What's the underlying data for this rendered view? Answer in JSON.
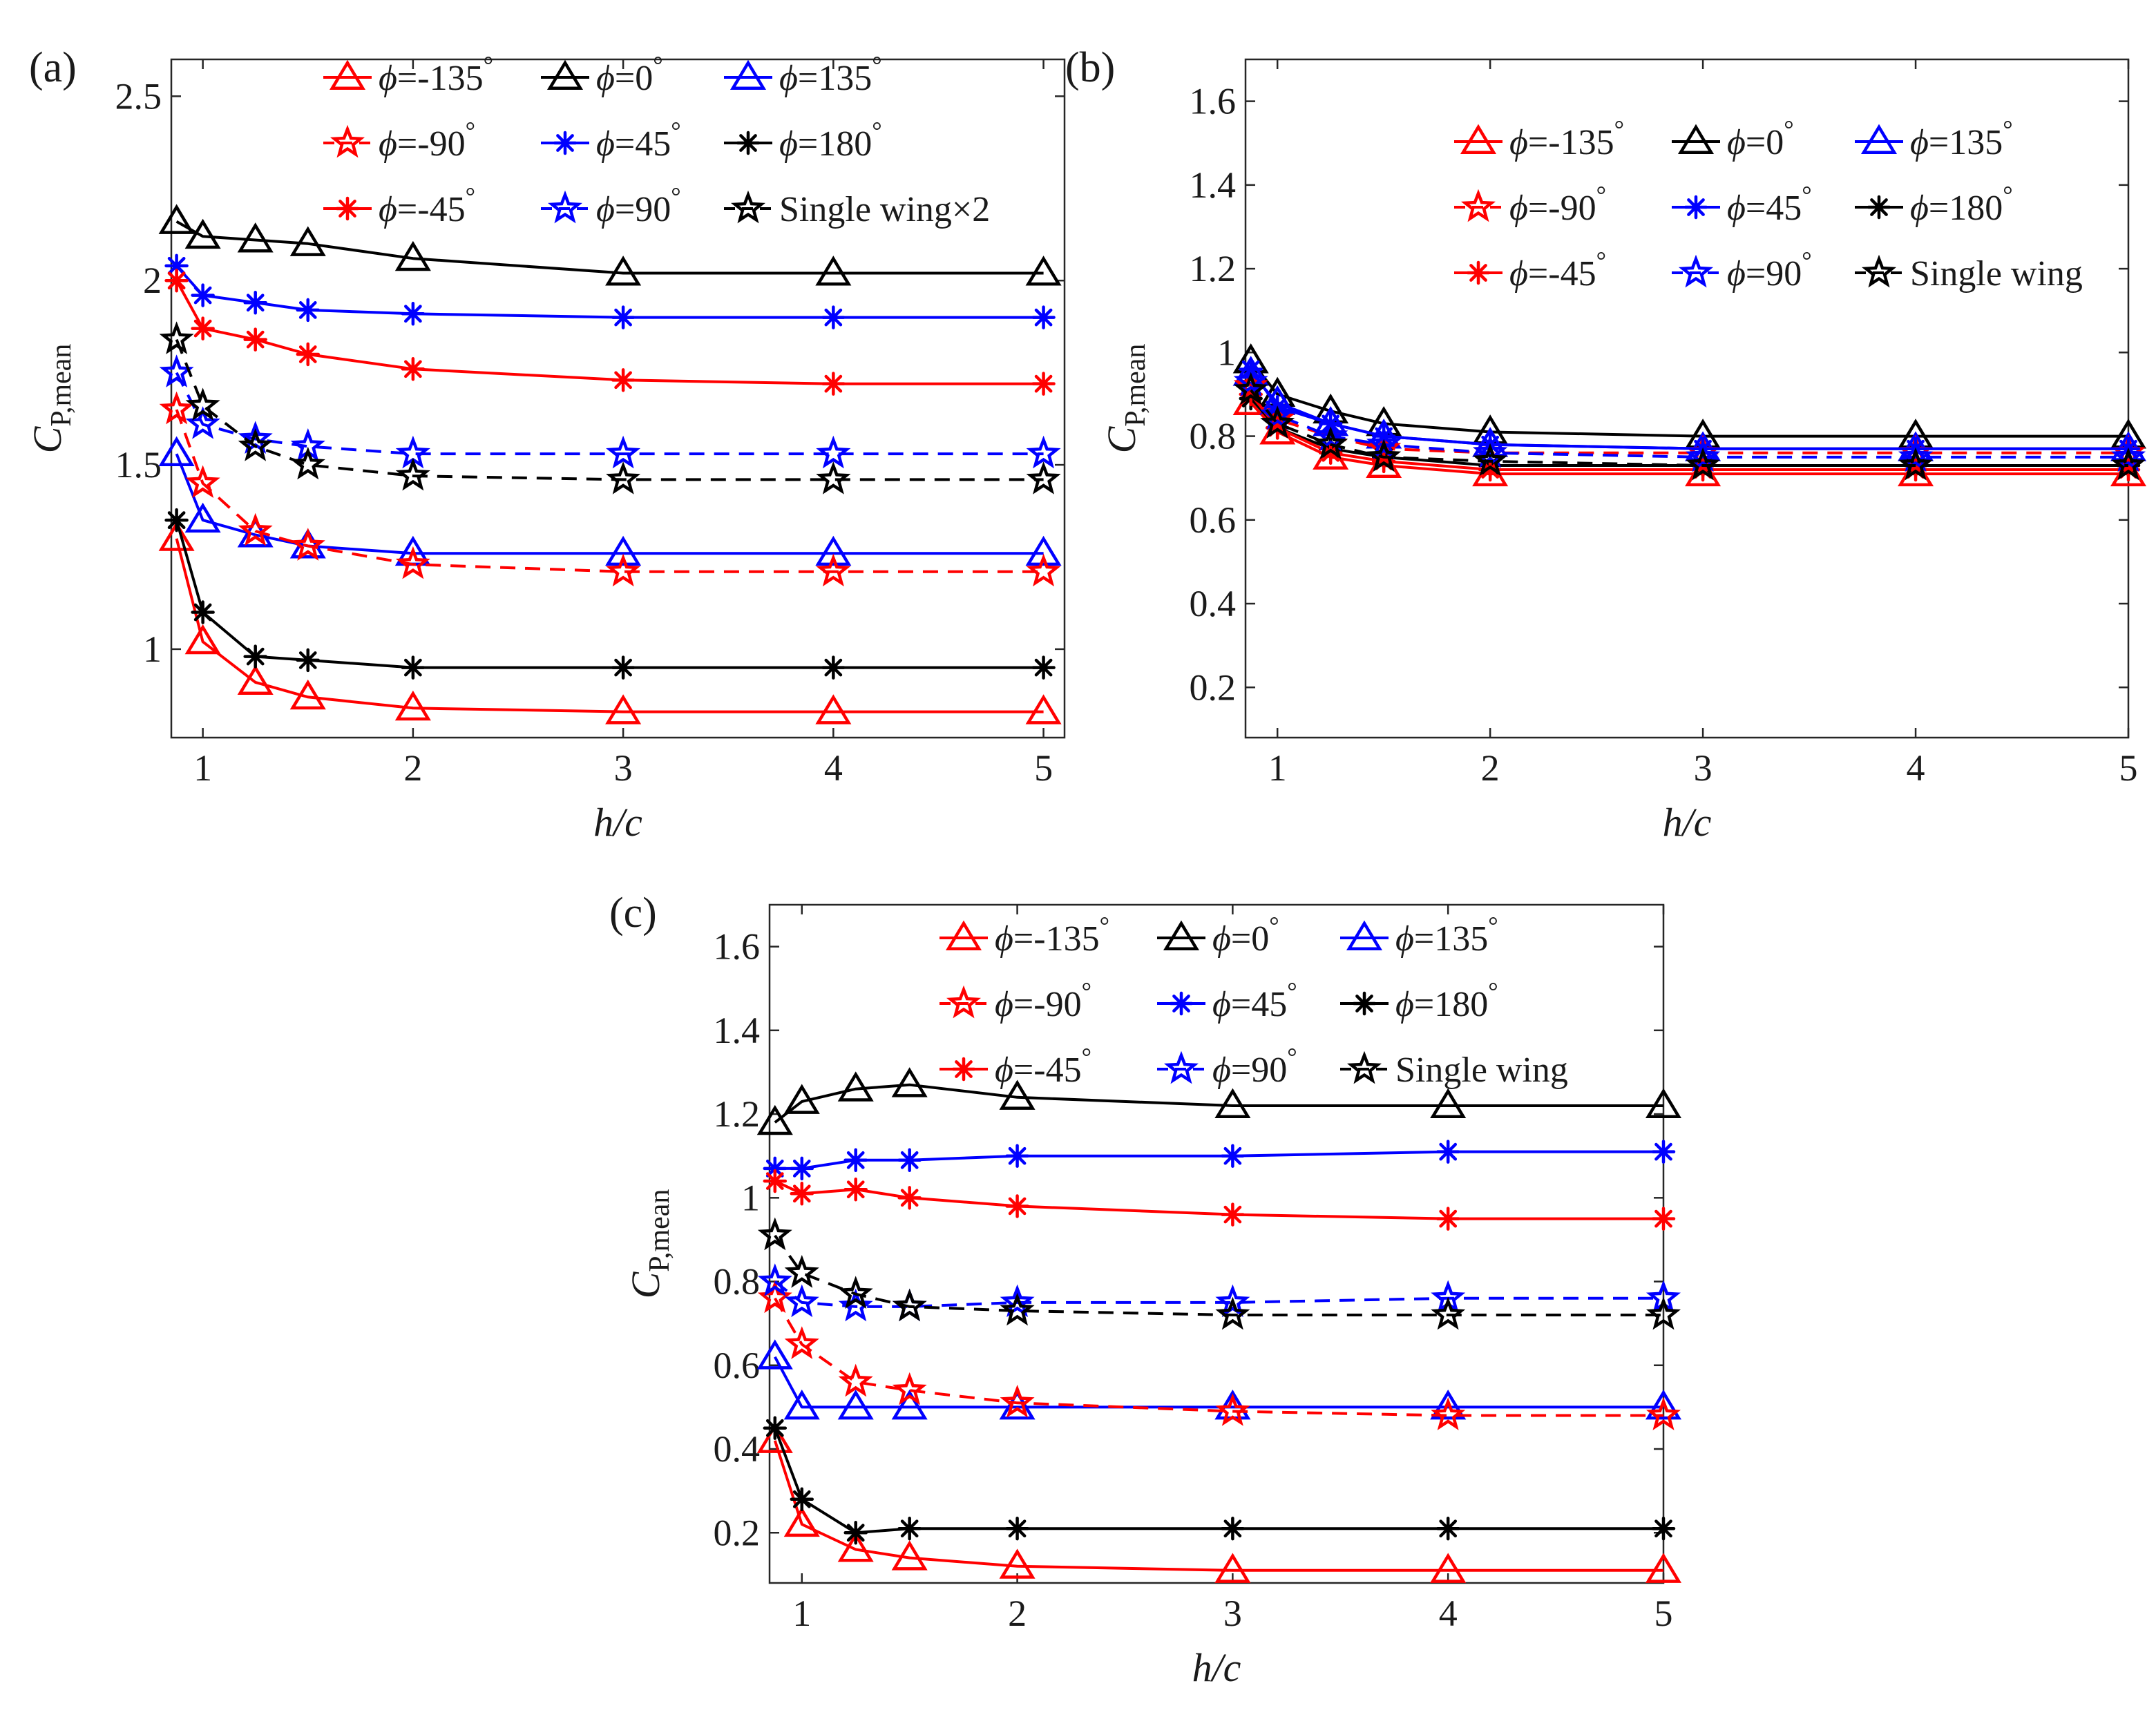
{
  "chart_data": [
    {
      "type": "line",
      "panel_label": "(a)",
      "xlabel": "h/c",
      "ylabel_main": "C",
      "ylabel_sub": "P,mean",
      "xlim": [
        0.85,
        5.1
      ],
      "ylim": [
        0.76,
        2.6
      ],
      "xticks": [
        1,
        2,
        3,
        4,
        5
      ],
      "xtick_labels": [
        "1",
        "2",
        "3",
        "4",
        "5"
      ],
      "yticks": [
        1,
        1.5,
        2,
        2.5
      ],
      "ytick_labels": [
        "1",
        "1.5",
        "2",
        "2.5"
      ],
      "x": [
        0.875,
        1,
        1.25,
        1.5,
        2,
        3,
        4,
        5
      ],
      "legend_location": "top",
      "series": [
        {
          "name": "ϕ=-135°",
          "symbol": "ϕ",
          "rest": "=-135",
          "sup": "°",
          "color": "#ff0000",
          "marker": "triangle",
          "dash": "solid",
          "values": [
            1.3,
            1.02,
            0.91,
            0.87,
            0.84,
            0.83,
            0.83,
            0.83
          ]
        },
        {
          "name": "ϕ=0°",
          "symbol": "ϕ",
          "rest": "=0",
          "sup": "°",
          "color": "#000000",
          "marker": "triangle",
          "dash": "solid",
          "values": [
            2.16,
            2.12,
            2.11,
            2.1,
            2.06,
            2.02,
            2.02,
            2.02
          ]
        },
        {
          "name": "ϕ=135°",
          "symbol": "ϕ",
          "rest": "=135",
          "sup": "°",
          "color": "#0000ff",
          "marker": "triangle",
          "dash": "solid",
          "values": [
            1.53,
            1.35,
            1.31,
            1.28,
            1.26,
            1.26,
            1.26,
            1.26
          ]
        },
        {
          "name": "ϕ=-90°",
          "symbol": "ϕ",
          "rest": "=-90",
          "sup": "°",
          "color": "#ff0000",
          "marker": "pentagram",
          "dash": "dashed",
          "values": [
            1.65,
            1.45,
            1.32,
            1.28,
            1.23,
            1.21,
            1.21,
            1.21
          ]
        },
        {
          "name": "ϕ=45°",
          "symbol": "ϕ",
          "rest": "=45",
          "sup": "°",
          "color": "#0000ff",
          "marker": "asterisk",
          "dash": "solid",
          "values": [
            2.04,
            1.96,
            1.94,
            1.92,
            1.91,
            1.9,
            1.9,
            1.9
          ]
        },
        {
          "name": "ϕ=180°",
          "symbol": "ϕ",
          "rest": "=180",
          "sup": "°",
          "color": "#000000",
          "marker": "asterisk",
          "dash": "solid",
          "values": [
            1.35,
            1.1,
            0.98,
            0.97,
            0.95,
            0.95,
            0.95,
            0.95
          ]
        },
        {
          "name": "ϕ=-45°",
          "symbol": "ϕ",
          "rest": "=-45",
          "sup": "°",
          "color": "#ff0000",
          "marker": "asterisk",
          "dash": "solid",
          "values": [
            2.0,
            1.87,
            1.84,
            1.8,
            1.76,
            1.73,
            1.72,
            1.72
          ]
        },
        {
          "name": "ϕ=90°",
          "symbol": "ϕ",
          "rest": "=90",
          "sup": "°",
          "color": "#0000ff",
          "marker": "pentagram",
          "dash": "dashed",
          "values": [
            1.75,
            1.61,
            1.57,
            1.55,
            1.53,
            1.53,
            1.53,
            1.53
          ]
        },
        {
          "name": "Single wing×2",
          "symbol": "",
          "rest": "Single wing×2",
          "sup": "",
          "color": "#000000",
          "marker": "pentagram",
          "dash": "dashed",
          "values": [
            1.84,
            1.66,
            1.55,
            1.5,
            1.47,
            1.46,
            1.46,
            1.46
          ]
        }
      ]
    },
    {
      "type": "line",
      "panel_label": "(b)",
      "xlabel": "h/c",
      "ylabel_main": "C",
      "ylabel_sub": "P,mean",
      "xlim": [
        0.85,
        5.0
      ],
      "ylim": [
        0.08,
        1.7
      ],
      "xticks": [
        1,
        2,
        3,
        4,
        5
      ],
      "xtick_labels": [
        "1",
        "2",
        "3",
        "4",
        "5"
      ],
      "yticks": [
        0.2,
        0.4,
        0.6,
        0.8,
        1,
        1.2,
        1.4,
        1.6
      ],
      "ytick_labels": [
        "0.2",
        "0.4",
        "0.6",
        "0.8",
        "1",
        "1.2",
        "1.4",
        "1.6"
      ],
      "x": [
        0.875,
        1,
        1.25,
        1.5,
        2,
        3,
        4,
        5
      ],
      "legend_location": "top-right",
      "series": [
        {
          "name": "ϕ=-135°",
          "symbol": "ϕ",
          "rest": "=-135",
          "sup": "°",
          "color": "#ff0000",
          "marker": "triangle",
          "dash": "solid",
          "values": [
            0.88,
            0.81,
            0.75,
            0.73,
            0.71,
            0.71,
            0.71,
            0.71
          ]
        },
        {
          "name": "ϕ=0°",
          "symbol": "ϕ",
          "rest": "=0",
          "sup": "°",
          "color": "#000000",
          "marker": "triangle",
          "dash": "solid",
          "values": [
            0.98,
            0.9,
            0.86,
            0.83,
            0.81,
            0.8,
            0.8,
            0.8
          ]
        },
        {
          "name": "ϕ=135°",
          "symbol": "ϕ",
          "rest": "=135",
          "sup": "°",
          "color": "#0000ff",
          "marker": "triangle",
          "dash": "solid",
          "values": [
            0.95,
            0.88,
            0.83,
            0.8,
            0.78,
            0.77,
            0.77,
            0.77
          ]
        },
        {
          "name": "ϕ=-90°",
          "symbol": "ϕ",
          "rest": "=-90",
          "sup": "°",
          "color": "#ff0000",
          "marker": "pentagram",
          "dash": "dashed",
          "values": [
            0.92,
            0.84,
            0.8,
            0.77,
            0.76,
            0.76,
            0.76,
            0.76
          ]
        },
        {
          "name": "ϕ=45°",
          "symbol": "ϕ",
          "rest": "=45",
          "sup": "°",
          "color": "#0000ff",
          "marker": "asterisk",
          "dash": "solid",
          "values": [
            0.96,
            0.87,
            0.83,
            0.8,
            0.78,
            0.77,
            0.77,
            0.77
          ]
        },
        {
          "name": "ϕ=180°",
          "symbol": "ϕ",
          "rest": "=180",
          "sup": "°",
          "color": "#000000",
          "marker": "asterisk",
          "dash": "solid",
          "values": [
            0.89,
            0.82,
            0.77,
            0.75,
            0.73,
            0.73,
            0.73,
            0.73
          ]
        },
        {
          "name": "ϕ=-45°",
          "symbol": "ϕ",
          "rest": "=-45",
          "sup": "°",
          "color": "#ff0000",
          "marker": "asterisk",
          "dash": "solid",
          "values": [
            0.9,
            0.82,
            0.76,
            0.74,
            0.72,
            0.72,
            0.72,
            0.72
          ]
        },
        {
          "name": "ϕ=90°",
          "symbol": "ϕ",
          "rest": "=90",
          "sup": "°",
          "color": "#0000ff",
          "marker": "pentagram",
          "dash": "dashed",
          "values": [
            0.93,
            0.85,
            0.8,
            0.78,
            0.76,
            0.75,
            0.75,
            0.75
          ]
        },
        {
          "name": "Single wing",
          "symbol": "",
          "rest": "Single wing",
          "sup": "",
          "color": "#000000",
          "marker": "pentagram",
          "dash": "dashed",
          "values": [
            0.91,
            0.83,
            0.78,
            0.75,
            0.74,
            0.73,
            0.73,
            0.73
          ]
        }
      ]
    },
    {
      "type": "line",
      "panel_label": "(c)",
      "xlabel": "h/c",
      "ylabel_main": "C",
      "ylabel_sub": "P,mean",
      "xlim": [
        0.85,
        5.0
      ],
      "ylim": [
        0.08,
        1.7
      ],
      "xticks": [
        1,
        2,
        3,
        4,
        5
      ],
      "xtick_labels": [
        "1",
        "2",
        "3",
        "4",
        "5"
      ],
      "yticks": [
        0.2,
        0.4,
        0.6,
        0.8,
        1,
        1.2,
        1.4,
        1.6
      ],
      "ytick_labels": [
        "0.2",
        "0.4",
        "0.6",
        "0.8",
        "1",
        "1.2",
        "1.4",
        "1.6"
      ],
      "x": [
        0.875,
        1,
        1.25,
        1.5,
        2,
        3,
        4,
        5
      ],
      "legend_location": "top",
      "series": [
        {
          "name": "ϕ=-135°",
          "symbol": "ϕ",
          "rest": "=-135",
          "sup": "°",
          "color": "#ff0000",
          "marker": "triangle",
          "dash": "solid",
          "values": [
            0.42,
            0.22,
            0.16,
            0.14,
            0.12,
            0.11,
            0.11,
            0.11
          ]
        },
        {
          "name": "ϕ=0°",
          "symbol": "ϕ",
          "rest": "=0",
          "sup": "°",
          "color": "#000000",
          "marker": "triangle",
          "dash": "solid",
          "values": [
            1.18,
            1.23,
            1.26,
            1.27,
            1.24,
            1.22,
            1.22,
            1.22
          ]
        },
        {
          "name": "ϕ=135°",
          "symbol": "ϕ",
          "rest": "=135",
          "sup": "°",
          "color": "#0000ff",
          "marker": "triangle",
          "dash": "solid",
          "values": [
            0.62,
            0.5,
            0.5,
            0.5,
            0.5,
            0.5,
            0.5,
            0.5
          ]
        },
        {
          "name": "ϕ=-90°",
          "symbol": "ϕ",
          "rest": "=-90",
          "sup": "°",
          "color": "#ff0000",
          "marker": "pentagram",
          "dash": "dashed",
          "values": [
            0.76,
            0.65,
            0.56,
            0.54,
            0.51,
            0.49,
            0.48,
            0.48
          ]
        },
        {
          "name": "ϕ=45°",
          "symbol": "ϕ",
          "rest": "=45",
          "sup": "°",
          "color": "#0000ff",
          "marker": "asterisk",
          "dash": "solid",
          "values": [
            1.07,
            1.07,
            1.09,
            1.09,
            1.1,
            1.1,
            1.11,
            1.11
          ]
        },
        {
          "name": "ϕ=180°",
          "symbol": "ϕ",
          "rest": "=180",
          "sup": "°",
          "color": "#000000",
          "marker": "asterisk",
          "dash": "solid",
          "values": [
            0.45,
            0.28,
            0.2,
            0.21,
            0.21,
            0.21,
            0.21,
            0.21
          ]
        },
        {
          "name": "ϕ=-45°",
          "symbol": "ϕ",
          "rest": "=-45",
          "sup": "°",
          "color": "#ff0000",
          "marker": "asterisk",
          "dash": "solid",
          "values": [
            1.04,
            1.01,
            1.02,
            1.0,
            0.98,
            0.96,
            0.95,
            0.95
          ]
        },
        {
          "name": "ϕ=90°",
          "symbol": "ϕ",
          "rest": "=90",
          "sup": "°",
          "color": "#0000ff",
          "marker": "pentagram",
          "dash": "dashed",
          "values": [
            0.8,
            0.75,
            0.74,
            0.74,
            0.75,
            0.75,
            0.76,
            0.76
          ]
        },
        {
          "name": "Single wing",
          "symbol": "",
          "rest": "Single wing",
          "sup": "",
          "color": "#000000",
          "marker": "pentagram",
          "dash": "dashed",
          "values": [
            0.91,
            0.82,
            0.77,
            0.74,
            0.73,
            0.72,
            0.72,
            0.72
          ]
        }
      ]
    }
  ]
}
